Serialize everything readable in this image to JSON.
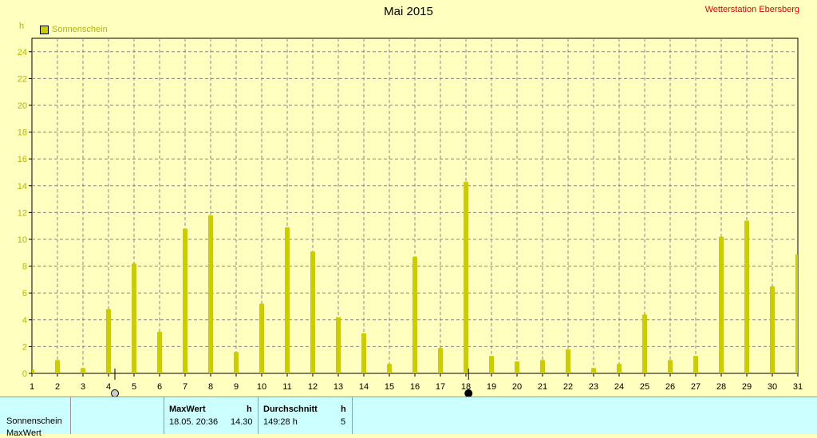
{
  "title": "Mai 2015",
  "station": "Wetterstation Ebersberg",
  "unit_label": "h",
  "legend_label": "Sonnenschein",
  "moon_markers": [
    {
      "day": 4.25,
      "phase": "new-moon"
    },
    {
      "day": 18.1,
      "phase": "full-moon"
    }
  ],
  "colors": {
    "bar": "#cccc00",
    "background": "#ffffc0",
    "title_station": "#e00000",
    "axis_text": "#b5b500",
    "panel": "#ccffff"
  },
  "chart_data": {
    "type": "bar",
    "title": "Mai 2015",
    "ylabel": "h",
    "ylim": [
      0,
      25
    ],
    "yticks": [
      0,
      2,
      4,
      6,
      8,
      10,
      12,
      14,
      16,
      18,
      20,
      22,
      24
    ],
    "grid": true,
    "legend": "top-left",
    "categories": [
      "1",
      "2",
      "3",
      "4",
      "5",
      "6",
      "7",
      "8",
      "9",
      "10",
      "11",
      "12",
      "13",
      "14",
      "15",
      "16",
      "17",
      "18",
      "19",
      "20",
      "21",
      "22",
      "23",
      "24",
      "25",
      "26",
      "27",
      "28",
      "29",
      "30",
      "31"
    ],
    "series": [
      {
        "name": "Sonnenschein",
        "values": [
          0.3,
          1.0,
          0.4,
          4.8,
          8.2,
          3.1,
          10.8,
          11.8,
          1.6,
          5.2,
          10.9,
          9.1,
          4.2,
          3.0,
          0.7,
          8.7,
          1.9,
          14.3,
          1.3,
          0.9,
          1.0,
          1.8,
          0.4,
          0.7,
          4.4,
          1.0,
          1.3,
          10.2,
          11.4,
          6.5,
          8.9
        ]
      }
    ]
  },
  "panel": {
    "row_label": "Sonnenschein",
    "row_label_2": "MaxWert",
    "max_header": "MaxWert",
    "max_unit": "h",
    "max_datetime": "18.05.  20:36",
    "max_value": "14.30",
    "avg_header": "Durchschnitt",
    "avg_unit": "h",
    "avg_total": "149:28 h",
    "avg_value": "5"
  }
}
